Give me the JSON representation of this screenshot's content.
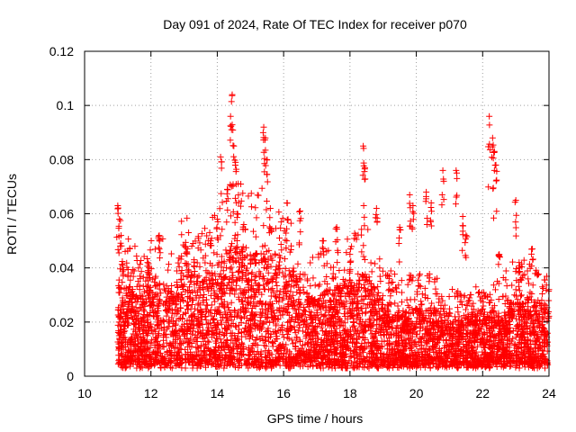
{
  "chart_data": {
    "type": "scatter",
    "title": "Day 091 of 2024, Rate Of TEC Index for receiver p070",
    "xlabel": "GPS time / hours",
    "ylabel": "ROTI / TECUs",
    "xlim": [
      10,
      24
    ],
    "ylim": [
      0,
      0.12
    ],
    "xticks": [
      "10",
      "12",
      "14",
      "16",
      "18",
      "20",
      "22",
      "24"
    ],
    "yticks": [
      "0",
      "0.02",
      "0.04",
      "0.06",
      "0.08",
      "0.1",
      "0.12"
    ],
    "grid": true,
    "marker": "plus",
    "color": "#ff0000",
    "series": [
      {
        "name": "ROTI",
        "description_points": "dense band 11.0–24.0 h, bulk values 0.003–0.03 TECU",
        "x": [
          11.0,
          11.05,
          11.1,
          11.15,
          11.9,
          11.95,
          12.25,
          13.1,
          13.3,
          13.8,
          14.0,
          14.1,
          14.3,
          14.4,
          14.45,
          14.5,
          14.55,
          14.6,
          14.8,
          15.4,
          15.45,
          15.5,
          15.6,
          16.1,
          16.5,
          17.2,
          17.6,
          18.0,
          18.4,
          18.45,
          18.8,
          19.5,
          19.8,
          19.9,
          20.3,
          20.45,
          20.8,
          21.2,
          21.4,
          21.5,
          22.2,
          22.3,
          22.35,
          22.4,
          22.5,
          23.0,
          23.1,
          23.5,
          23.8,
          24.0
        ],
        "y": [
          0.063,
          0.058,
          0.052,
          0.041,
          0.042,
          0.038,
          0.052,
          0.047,
          0.043,
          0.05,
          0.058,
          0.081,
          0.069,
          0.096,
          0.104,
          0.085,
          0.079,
          0.06,
          0.056,
          0.092,
          0.088,
          0.08,
          0.062,
          0.064,
          0.061,
          0.05,
          0.055,
          0.045,
          0.085,
          0.077,
          0.062,
          0.055,
          0.067,
          0.063,
          0.068,
          0.064,
          0.076,
          0.076,
          0.059,
          0.052,
          0.096,
          0.088,
          0.083,
          0.078,
          0.045,
          0.065,
          0.042,
          0.047,
          0.033,
          0.032
        ]
      }
    ]
  }
}
